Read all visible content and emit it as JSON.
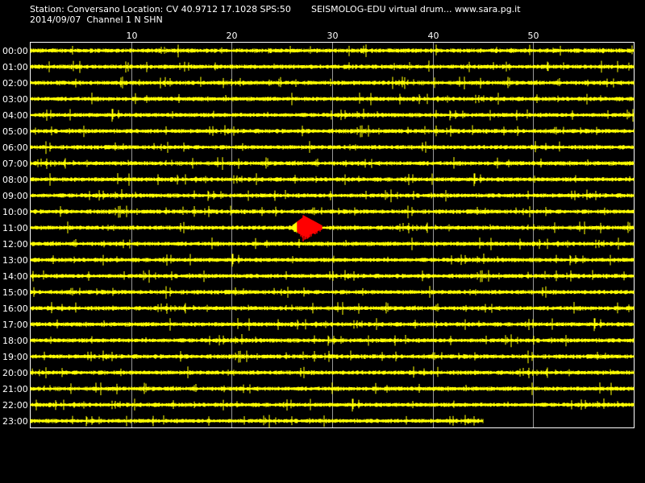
{
  "header": {
    "station_line": "Station: Conversano Location: CV 40.9712 17.1028 SPS:50",
    "app_line": "SEISMOLOG-EDU virtual drum... www.sara.pg.it",
    "date_line": "2014/09/07  Channel 1 N SHN"
  },
  "colors": {
    "background": "#000000",
    "trace": "#ffff00",
    "event": "#ff0000",
    "grid": "#ffffff",
    "text": "#ffffff"
  },
  "chart_data": {
    "type": "line",
    "title": "",
    "xlabel": "",
    "ylabel": "",
    "x_ticks": [
      10,
      20,
      30,
      40,
      50
    ],
    "xlim": [
      0,
      60
    ],
    "grid": true,
    "rows": [
      {
        "label": "00:00",
        "end_minute": 60
      },
      {
        "label": "01:00",
        "end_minute": 60
      },
      {
        "label": "02:00",
        "end_minute": 60
      },
      {
        "label": "03:00",
        "end_minute": 60
      },
      {
        "label": "04:00",
        "end_minute": 60
      },
      {
        "label": "05:00",
        "end_minute": 60
      },
      {
        "label": "06:00",
        "end_minute": 60
      },
      {
        "label": "07:00",
        "end_minute": 60
      },
      {
        "label": "08:00",
        "end_minute": 60
      },
      {
        "label": "09:00",
        "end_minute": 60
      },
      {
        "label": "10:00",
        "end_minute": 60
      },
      {
        "label": "11:00",
        "end_minute": 60,
        "event": {
          "start_minute": 26.5,
          "end_minute": 29.0
        }
      },
      {
        "label": "12:00",
        "end_minute": 60
      },
      {
        "label": "13:00",
        "end_minute": 60
      },
      {
        "label": "14:00",
        "end_minute": 60
      },
      {
        "label": "15:00",
        "end_minute": 60
      },
      {
        "label": "16:00",
        "end_minute": 60
      },
      {
        "label": "17:00",
        "end_minute": 60
      },
      {
        "label": "18:00",
        "end_minute": 60
      },
      {
        "label": "19:00",
        "end_minute": 60
      },
      {
        "label": "20:00",
        "end_minute": 60
      },
      {
        "label": "21:00",
        "end_minute": 60
      },
      {
        "label": "22:00",
        "end_minute": 60
      },
      {
        "label": "23:00",
        "end_minute": 45
      }
    ]
  }
}
